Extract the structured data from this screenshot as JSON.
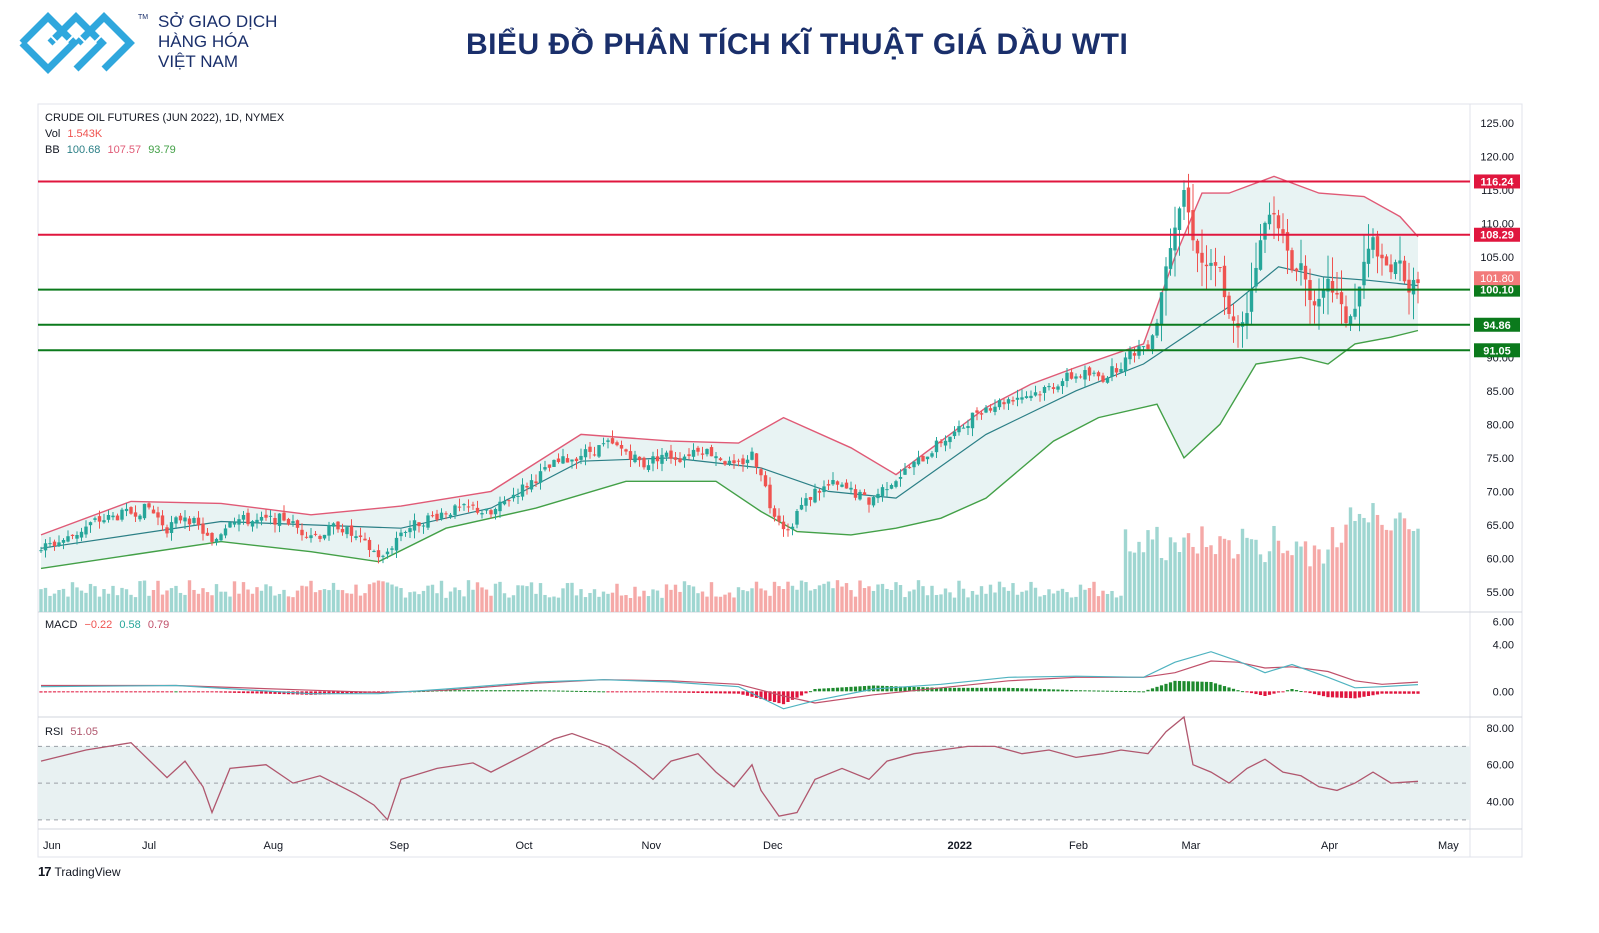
{
  "header": {
    "brand_line1": "SỞ GIAO DỊCH",
    "brand_line2": "HÀNG HÓA",
    "brand_line3": "VIỆT NAM",
    "trademark": "TM",
    "title": "BIỂU ĐỒ PHÂN TÍCH KĨ THUẬT GIÁ DẦU WTI",
    "logo_icon": "vnx-logo-icon"
  },
  "legend": {
    "symbol": "CRUDE OIL FUTURES (JUN 2022), 1D, NYMEX",
    "vol_label": "Vol",
    "vol_value": "1.543K",
    "bb_label": "BB",
    "bb_basis": "100.68",
    "bb_upper": "107.57",
    "bb_lower": "93.79",
    "macd_label": "MACD",
    "macd_hist": "−0.22",
    "macd_line": "0.58",
    "macd_signal": "0.79",
    "rsi_label": "RSI",
    "rsi_value": "51.05"
  },
  "footer": {
    "brand": "TradingView",
    "brand_icon": "tradingview-logo-icon"
  },
  "colors": {
    "up": "#26a69a",
    "down": "#ef5350",
    "resistance": "#e0163e",
    "support": "#0b7a1c",
    "bb_upper": "#e05a76",
    "bb_lower": "#43a047",
    "bb_basis": "#2b7f86",
    "bb_fill": "#e6f2f2",
    "macd_line": "#4fb3c0",
    "signal_line": "#c0506a",
    "rsi_line": "#b0576e",
    "rsi_band": "#e8f1f2"
  },
  "chart_data": {
    "type": "candlestick",
    "title": "CRUDE OIL FUTURES (JUN 2022), 1D, NYMEX",
    "x_axis_labels": [
      "Jun",
      "Jul",
      "Aug",
      "Sep",
      "Oct",
      "Nov",
      "Dec",
      "2022",
      "Feb",
      "Mar",
      "Apr",
      "May"
    ],
    "price_ticks": [
      "125.00",
      "120.00",
      "115.00",
      "110.00",
      "105.00",
      "100.00",
      "95.00",
      "90.00",
      "85.00",
      "80.00",
      "75.00",
      "70.00",
      "65.00",
      "60.00",
      "55.00"
    ],
    "price_range": [
      52.0,
      127.5
    ],
    "levels": [
      {
        "value": 116.24,
        "label": "116.24",
        "kind": "resistance"
      },
      {
        "value": 108.29,
        "label": "108.29",
        "kind": "resistance"
      },
      {
        "value": 100.1,
        "label": "100.10",
        "kind": "support"
      },
      {
        "value": 94.86,
        "label": "94.86",
        "kind": "support"
      },
      {
        "value": 91.05,
        "label": "91.05",
        "kind": "support"
      }
    ],
    "last_price": {
      "value": 101.8,
      "label": "101.80"
    },
    "price_path": [
      [
        0,
        61.5
      ],
      [
        6,
        63
      ],
      [
        12,
        65.5
      ],
      [
        18,
        66.5
      ],
      [
        24,
        67.5
      ],
      [
        28,
        64.5
      ],
      [
        32,
        66.5
      ],
      [
        36,
        64
      ],
      [
        38,
        62
      ],
      [
        42,
        66
      ],
      [
        48,
        65.5
      ],
      [
        54,
        66
      ],
      [
        58,
        64
      ],
      [
        62,
        63.5
      ],
      [
        66,
        65
      ],
      [
        70,
        63
      ],
      [
        74,
        61
      ],
      [
        76,
        60
      ],
      [
        80,
        64
      ],
      [
        86,
        66
      ],
      [
        90,
        67
      ],
      [
        96,
        67.5
      ],
      [
        100,
        66.5
      ],
      [
        104,
        69
      ],
      [
        108,
        71
      ],
      [
        114,
        74
      ],
      [
        120,
        75.5
      ],
      [
        126,
        77
      ],
      [
        130,
        76
      ],
      [
        134,
        74
      ],
      [
        138,
        75.5
      ],
      [
        142,
        75
      ],
      [
        146,
        76.5
      ],
      [
        150,
        75.5
      ],
      [
        154,
        73.5
      ],
      [
        158,
        75.5
      ],
      [
        160,
        73
      ],
      [
        162,
        68
      ],
      [
        164,
        66
      ],
      [
        166,
        64
      ],
      [
        168,
        67
      ],
      [
        172,
        70
      ],
      [
        176,
        71
      ],
      [
        180,
        70
      ],
      [
        184,
        68.5
      ],
      [
        188,
        71
      ],
      [
        192,
        73
      ],
      [
        196,
        75
      ],
      [
        200,
        77.5
      ],
      [
        204,
        79
      ],
      [
        208,
        82
      ],
      [
        212,
        83
      ],
      [
        216,
        84
      ],
      [
        220,
        84.5
      ],
      [
        224,
        85.5
      ],
      [
        228,
        87
      ],
      [
        232,
        87.5
      ],
      [
        236,
        87
      ],
      [
        240,
        89
      ],
      [
        244,
        91.5
      ],
      [
        246,
        92
      ],
      [
        248,
        95.5
      ],
      [
        250,
        104
      ],
      [
        252,
        110
      ],
      [
        254,
        115
      ],
      [
        256,
        108
      ],
      [
        258,
        104
      ],
      [
        262,
        103
      ],
      [
        264,
        96
      ],
      [
        266,
        94
      ],
      [
        268,
        97
      ],
      [
        270,
        104
      ],
      [
        272,
        110
      ],
      [
        274,
        112
      ],
      [
        276,
        108
      ],
      [
        278,
        103
      ],
      [
        280,
        104
      ],
      [
        282,
        99
      ],
      [
        284,
        98
      ],
      [
        286,
        101
      ],
      [
        288,
        99
      ],
      [
        290,
        95.5
      ],
      [
        292,
        97
      ],
      [
        294,
        104
      ],
      [
        296,
        107.5
      ],
      [
        298,
        104
      ],
      [
        300,
        103
      ],
      [
        302,
        104
      ],
      [
        304,
        100
      ],
      [
        306,
        101.8
      ]
    ],
    "sessions": 307,
    "bollinger_upper_path": [
      [
        0,
        63.5
      ],
      [
        20,
        68.5
      ],
      [
        40,
        68.2
      ],
      [
        60,
        66.5
      ],
      [
        80,
        67.8
      ],
      [
        100,
        70
      ],
      [
        120,
        78.5
      ],
      [
        140,
        77.5
      ],
      [
        155,
        77.2
      ],
      [
        165,
        81
      ],
      [
        180,
        76.5
      ],
      [
        190,
        72.5
      ],
      [
        210,
        82.5
      ],
      [
        220,
        86
      ],
      [
        230,
        88.5
      ],
      [
        245,
        92
      ],
      [
        252,
        105
      ],
      [
        258,
        114.5
      ],
      [
        264,
        114.5
      ],
      [
        274,
        117
      ],
      [
        284,
        114.5
      ],
      [
        294,
        114
      ],
      [
        302,
        111
      ],
      [
        306,
        108
      ]
    ],
    "bollinger_basis_path": [
      [
        0,
        61.5
      ],
      [
        40,
        65.5
      ],
      [
        80,
        64.5
      ],
      [
        100,
        67.5
      ],
      [
        120,
        74.5
      ],
      [
        140,
        75
      ],
      [
        160,
        73.5
      ],
      [
        175,
        70
      ],
      [
        190,
        69
      ],
      [
        210,
        78.5
      ],
      [
        230,
        85
      ],
      [
        245,
        89
      ],
      [
        255,
        93.5
      ],
      [
        265,
        98
      ],
      [
        275,
        103.5
      ],
      [
        285,
        102
      ],
      [
        295,
        101.5
      ],
      [
        306,
        100.7
      ]
    ],
    "bollinger_lower_path": [
      [
        0,
        58.5
      ],
      [
        20,
        60.5
      ],
      [
        40,
        62.5
      ],
      [
        60,
        61
      ],
      [
        75,
        59.5
      ],
      [
        90,
        64.5
      ],
      [
        110,
        67.5
      ],
      [
        130,
        71.5
      ],
      [
        150,
        71.5
      ],
      [
        160,
        67
      ],
      [
        168,
        64
      ],
      [
        180,
        63.5
      ],
      [
        190,
        64.5
      ],
      [
        200,
        66
      ],
      [
        210,
        69
      ],
      [
        225,
        77.5
      ],
      [
        235,
        81
      ],
      [
        248,
        83
      ],
      [
        254,
        75
      ],
      [
        262,
        80
      ],
      [
        270,
        89
      ],
      [
        280,
        90
      ],
      [
        286,
        89
      ],
      [
        292,
        92
      ],
      [
        300,
        93
      ],
      [
        306,
        94
      ]
    ],
    "volume": {
      "label": "Vol",
      "last": "1.543K",
      "heights_text": "relative",
      "peak_pct": 100
    },
    "macd": {
      "label": "MACD",
      "ticks": [
        "6.00",
        "4.00",
        "0.00"
      ],
      "range": [
        -2.2,
        6.8
      ],
      "macd_path": [
        [
          0,
          0.4
        ],
        [
          30,
          0.5
        ],
        [
          60,
          -0.2
        ],
        [
          75,
          -0.2
        ],
        [
          90,
          0.2
        ],
        [
          110,
          0.8
        ],
        [
          125,
          1.0
        ],
        [
          140,
          0.8
        ],
        [
          155,
          0.4
        ],
        [
          165,
          -1.5
        ],
        [
          172,
          -0.8
        ],
        [
          185,
          0.2
        ],
        [
          200,
          0.6
        ],
        [
          215,
          1.2
        ],
        [
          230,
          1.3
        ],
        [
          245,
          1.2
        ],
        [
          252,
          2.5
        ],
        [
          260,
          3.4
        ],
        [
          266,
          2.6
        ],
        [
          272,
          1.6
        ],
        [
          278,
          2.3
        ],
        [
          286,
          1.2
        ],
        [
          292,
          0.3
        ],
        [
          298,
          0.4
        ],
        [
          306,
          0.58
        ]
      ],
      "signal_path": [
        [
          0,
          0.5
        ],
        [
          30,
          0.5
        ],
        [
          60,
          0.1
        ],
        [
          75,
          -0.1
        ],
        [
          90,
          0.1
        ],
        [
          110,
          0.7
        ],
        [
          125,
          1.0
        ],
        [
          140,
          0.9
        ],
        [
          155,
          0.6
        ],
        [
          165,
          -0.4
        ],
        [
          172,
          -1.0
        ],
        [
          185,
          -0.3
        ],
        [
          200,
          0.3
        ],
        [
          215,
          0.9
        ],
        [
          230,
          1.2
        ],
        [
          245,
          1.2
        ],
        [
          252,
          1.6
        ],
        [
          260,
          2.6
        ],
        [
          266,
          2.5
        ],
        [
          272,
          2.0
        ],
        [
          278,
          2.1
        ],
        [
          286,
          1.7
        ],
        [
          292,
          0.9
        ],
        [
          298,
          0.6
        ],
        [
          306,
          0.79
        ]
      ],
      "last": {
        "hist": "−0.22",
        "macd": "0.58",
        "signal": "0.79"
      }
    },
    "rsi": {
      "label": "RSI",
      "ticks": [
        "80.00",
        "60.00",
        "40.00"
      ],
      "range": [
        25,
        86
      ],
      "band": [
        30,
        70
      ],
      "mid": 50,
      "last": "51.05",
      "path": [
        [
          0,
          62
        ],
        [
          10,
          68
        ],
        [
          20,
          72
        ],
        [
          28,
          53
        ],
        [
          32,
          62
        ],
        [
          36,
          48
        ],
        [
          38,
          34
        ],
        [
          42,
          58
        ],
        [
          50,
          60
        ],
        [
          56,
          50
        ],
        [
          62,
          54
        ],
        [
          70,
          44
        ],
        [
          74,
          38
        ],
        [
          77,
          30
        ],
        [
          80,
          52
        ],
        [
          88,
          58
        ],
        [
          96,
          61
        ],
        [
          100,
          56
        ],
        [
          108,
          66
        ],
        [
          114,
          74
        ],
        [
          118,
          77
        ],
        [
          126,
          70
        ],
        [
          132,
          60
        ],
        [
          136,
          52
        ],
        [
          140,
          62
        ],
        [
          146,
          66
        ],
        [
          150,
          56
        ],
        [
          154,
          48
        ],
        [
          158,
          60
        ],
        [
          160,
          46
        ],
        [
          164,
          32
        ],
        [
          168,
          34
        ],
        [
          172,
          52
        ],
        [
          178,
          58
        ],
        [
          184,
          52
        ],
        [
          188,
          62
        ],
        [
          194,
          66
        ],
        [
          200,
          68
        ],
        [
          206,
          70
        ],
        [
          212,
          70
        ],
        [
          218,
          66
        ],
        [
          224,
          68
        ],
        [
          230,
          64
        ],
        [
          236,
          66
        ],
        [
          240,
          68
        ],
        [
          246,
          66
        ],
        [
          250,
          78
        ],
        [
          254,
          86
        ],
        [
          256,
          60
        ],
        [
          260,
          56
        ],
        [
          264,
          50
        ],
        [
          268,
          58
        ],
        [
          272,
          63
        ],
        [
          276,
          56
        ],
        [
          280,
          54
        ],
        [
          284,
          48
        ],
        [
          288,
          46
        ],
        [
          292,
          50
        ],
        [
          296,
          56
        ],
        [
          300,
          50
        ],
        [
          306,
          51
        ]
      ]
    }
  }
}
